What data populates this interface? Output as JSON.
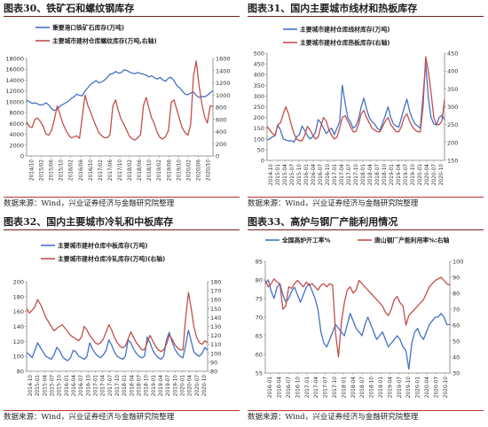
{
  "colors": {
    "blue": "#4472C4",
    "red": "#C0504D",
    "axis": "#808080"
  },
  "chart_data": [
    {
      "type": "line",
      "title": "图表30、铁矿石和螺纹钢库存",
      "source": "数据来源：Wind，兴业证券经济与金融研究院整理",
      "x_labels": [
        "2014/10",
        "2015/02",
        "2015/06",
        "2015/10",
        "2016/02",
        "2016/06",
        "2016/10",
        "2017/02",
        "2017/06",
        "2017/10",
        "2018/02",
        "2018/06",
        "2018/10",
        "2019/02",
        "2019/06",
        "2019/10",
        "2020/02",
        "2020/06",
        "2020/10"
      ],
      "y_left": {
        "min": 0,
        "max": 18000,
        "ticks": [
          "0",
          "2000",
          "4000",
          "6000",
          "8000",
          "10000",
          "12000",
          "14000",
          "16000",
          "18000"
        ]
      },
      "y_right": {
        "min": 0,
        "max": 1600,
        "ticks": [
          "0",
          "200",
          "400",
          "600",
          "800",
          "1000",
          "1200",
          "1400",
          "1600"
        ]
      },
      "series": [
        {
          "name": "重要港口铁矿石库存(万吨)",
          "axis": "left",
          "color": "blue",
          "values": [
            10300,
            10000,
            9700,
            9800,
            9600,
            9400,
            9500,
            9800,
            9400,
            8700,
            8400,
            8600,
            9200,
            9500,
            9800,
            10100,
            10600,
            10900,
            11400,
            11200,
            11100,
            12000,
            12600,
            13200,
            13600,
            13900,
            13500,
            13700,
            14000,
            14500,
            15100,
            15200,
            15600,
            15300,
            15400,
            15900,
            15800,
            15500,
            15300,
            15200,
            15400,
            15200,
            15100,
            14900,
            14600,
            14800,
            14400,
            14200,
            14500,
            14000,
            13800,
            14400,
            14500,
            13900,
            13000,
            12600,
            12000,
            11400,
            11300,
            11600,
            11800,
            11200,
            10800,
            11000,
            10900,
            11200,
            11700,
            12000
          ]
        },
        {
          "name": "主要城市建材仓库螺纹库存(万吨,右轴)",
          "axis": "right",
          "color": "red",
          "values": [
            560,
            480,
            470,
            600,
            620,
            560,
            480,
            360,
            340,
            420,
            600,
            820,
            680,
            540,
            430,
            350,
            300,
            310,
            330,
            290,
            640,
            1000,
            830,
            720,
            600,
            480,
            380,
            330,
            300,
            300,
            350,
            820,
            920,
            740,
            600,
            520,
            420,
            320,
            280,
            260,
            300,
            350,
            820,
            960,
            780,
            620,
            520,
            380,
            300,
            280,
            320,
            420,
            880,
            920,
            760,
            600,
            460,
            380,
            340,
            520,
            1320,
            1560,
            1160,
            860,
            640,
            540,
            820,
            820
          ]
        }
      ]
    },
    {
      "type": "line",
      "title": "图表31、国内主要城市线材和热板库存",
      "source": "数据来源：Wind，兴业证券经济与金融研究院整理",
      "x_labels": [
        "2014-10",
        "2015-01",
        "2015-04",
        "2015-07",
        "2015-10",
        "2016-01",
        "2016-04",
        "2016-07",
        "2016-10",
        "2017-01",
        "2017-04",
        "2017-07",
        "2017-10",
        "2018-01",
        "2018-04",
        "2018-07",
        "2018-10",
        "2019-01",
        "2019-04",
        "2019-07",
        "2019-10",
        "2020-01",
        "2020-04",
        "2020-07",
        "2020-10"
      ],
      "y_left": {
        "min": 0,
        "max": 500,
        "ticks": [
          "0",
          "50",
          "100",
          "150",
          "200",
          "250",
          "300",
          "350",
          "400",
          "450",
          "500"
        ]
      },
      "y_right": {
        "min": 150,
        "max": 450,
        "ticks": [
          "150",
          "200",
          "250",
          "300",
          "350",
          "400",
          "450"
        ]
      },
      "series": [
        {
          "name": "主要城市建材仓库线材库存(万吨)",
          "axis": "left",
          "color": "blue",
          "values": [
            95,
            100,
            110,
            115,
            165,
            140,
            100,
            95,
            90,
            92,
            85,
            110,
            120,
            160,
            140,
            115,
            100,
            110,
            130,
            190,
            175,
            150,
            125,
            140,
            150,
            120,
            150,
            180,
            350,
            270,
            200,
            180,
            150,
            160,
            190,
            250,
            290,
            240,
            200,
            180,
            170,
            150,
            140,
            175,
            210,
            250,
            200,
            170,
            160,
            155,
            200,
            245,
            285,
            230,
            195,
            170,
            160,
            150,
            300,
            455,
            290,
            200,
            170,
            165,
            200,
            210,
            190
          ]
        },
        {
          "name": "主要城市建材仓库热板库存(右轴)",
          "axis": "right",
          "color": "red",
          "values": [
            245,
            235,
            225,
            220,
            250,
            255,
            280,
            300,
            280,
            250,
            225,
            210,
            205,
            205,
            220,
            245,
            235,
            220,
            210,
            215,
            245,
            270,
            260,
            235,
            220,
            210,
            215,
            240,
            270,
            275,
            260,
            245,
            230,
            230,
            250,
            280,
            290,
            270,
            255,
            240,
            235,
            230,
            230,
            245,
            260,
            270,
            250,
            240,
            230,
            230,
            245,
            270,
            280,
            260,
            245,
            235,
            230,
            230,
            300,
            440,
            400,
            340,
            270,
            250,
            250,
            260,
            320
          ]
        }
      ]
    },
    {
      "type": "line",
      "title": "图表32、国内主要城市冷轧和中板库存",
      "source": "数据来源：Wind，兴业证券经济与金融研究院整理",
      "x_labels": [
        "2014-10",
        "2015-01",
        "2015-04",
        "2015-07",
        "2015-10",
        "2016-01",
        "2016-04",
        "2016-07",
        "2016-10",
        "2017-01",
        "2017-04",
        "2017-07",
        "2017-10",
        "2018-01",
        "2018-04",
        "2018-07",
        "2018-10",
        "2019-01",
        "2019-04",
        "2019-07",
        "2019-10",
        "2020-01",
        "2020-04",
        "2020-07",
        "2020-10"
      ],
      "y_left": {
        "min": 80,
        "max": 200,
        "ticks": [
          "80",
          "100",
          "120",
          "140",
          "160",
          "180",
          "200"
        ]
      },
      "y_right": {
        "min": 80,
        "max": 180,
        "ticks": [
          "80",
          "90",
          "100",
          "110",
          "120",
          "130",
          "140",
          "150",
          "160",
          "170",
          "180"
        ]
      },
      "series": [
        {
          "name": "主要城市建材仓库中板库存(万吨)",
          "axis": "left",
          "color": "blue",
          "values": [
            105,
            102,
            98,
            108,
            118,
            112,
            106,
            100,
            98,
            96,
            102,
            112,
            108,
            100,
            96,
            94,
            98,
            108,
            106,
            100,
            98,
            96,
            100,
            118,
            110,
            104,
            100,
            98,
            102,
            108,
            122,
            115,
            106,
            100,
            98,
            96,
            100,
            122,
            118,
            110,
            104,
            100,
            98,
            100,
            126,
            118,
            108,
            102,
            98,
            96,
            100,
            122,
            132,
            120,
            110,
            104,
            100,
            98,
            115,
            135,
            120,
            106,
            102,
            100,
            104,
            112,
            108
          ]
        },
        {
          "name": "主要城市建材仓库冷轧库存(万吨)(右轴)",
          "axis": "right",
          "color": "red",
          "values": [
            150,
            145,
            148,
            152,
            160,
            155,
            148,
            140,
            135,
            130,
            125,
            128,
            130,
            132,
            128,
            124,
            120,
            118,
            116,
            114,
            118,
            130,
            126,
            120,
            116,
            112,
            110,
            112,
            116,
            124,
            132,
            126,
            118,
            112,
            108,
            106,
            108,
            116,
            124,
            118,
            112,
            108,
            104,
            104,
            112,
            120,
            114,
            108,
            104,
            102,
            104,
            110,
            120,
            116,
            110,
            106,
            104,
            104,
            140,
            168,
            150,
            130,
            118,
            112,
            110,
            114,
            112
          ]
        }
      ]
    },
    {
      "type": "line",
      "title": "图表33、高炉与钢厂产能利用情况",
      "source": "数据来源：Wind，兴业证券经济与金融研究院整理",
      "x_labels": [
        "2016-01",
        "2016-04",
        "2016-07",
        "2016-10",
        "2017-01",
        "2017-04",
        "2017-07",
        "2017-10",
        "2018-01",
        "2018-04",
        "2018-07",
        "2018-10",
        "2019-01",
        "2019-04",
        "2019-07",
        "2019-10",
        "2020-01",
        "2020-04",
        "2020-07",
        "2020-10"
      ],
      "y_left": {
        "min": 55,
        "max": 85,
        "ticks": [
          "55",
          "60",
          "65",
          "70",
          "75",
          "80",
          "85"
        ]
      },
      "y_right": {
        "min": 30,
        "max": 100,
        "ticks": [
          "30",
          "40",
          "50",
          "60",
          "70",
          "80",
          "90",
          "100"
        ]
      },
      "series": [
        {
          "name": "全国高炉开工率%",
          "axis": "left",
          "color": "blue",
          "values": [
            79,
            80,
            77,
            75,
            78,
            79,
            76,
            74,
            75,
            77,
            78,
            76,
            74,
            76,
            78,
            79,
            77,
            75,
            72,
            66,
            63,
            62,
            64,
            66,
            68,
            67,
            66,
            65,
            68,
            71,
            69,
            67,
            66,
            65,
            68,
            70,
            68,
            66,
            64,
            65,
            66,
            64,
            62,
            63,
            64,
            65,
            64,
            62,
            61,
            56,
            63,
            66,
            67,
            65,
            64,
            66,
            68,
            69,
            70,
            70,
            71,
            70,
            68,
            68
          ]
        },
        {
          "name": "唐山钢厂产能利用率%:右轴",
          "axis": "right",
          "color": "red",
          "values": [
            88,
            84,
            86,
            89,
            87,
            86,
            70,
            72,
            84,
            83,
            86,
            88,
            86,
            84,
            87,
            85,
            86,
            84,
            82,
            85,
            86,
            84,
            86,
            85,
            55,
            40,
            62,
            74,
            82,
            84,
            80,
            82,
            88,
            86,
            84,
            82,
            80,
            78,
            76,
            74,
            72,
            68,
            66,
            70,
            76,
            78,
            74,
            72,
            60,
            66,
            68,
            70,
            72,
            74,
            76,
            80,
            84,
            86,
            88,
            89,
            90,
            88,
            86,
            85
          ]
        }
      ]
    }
  ]
}
